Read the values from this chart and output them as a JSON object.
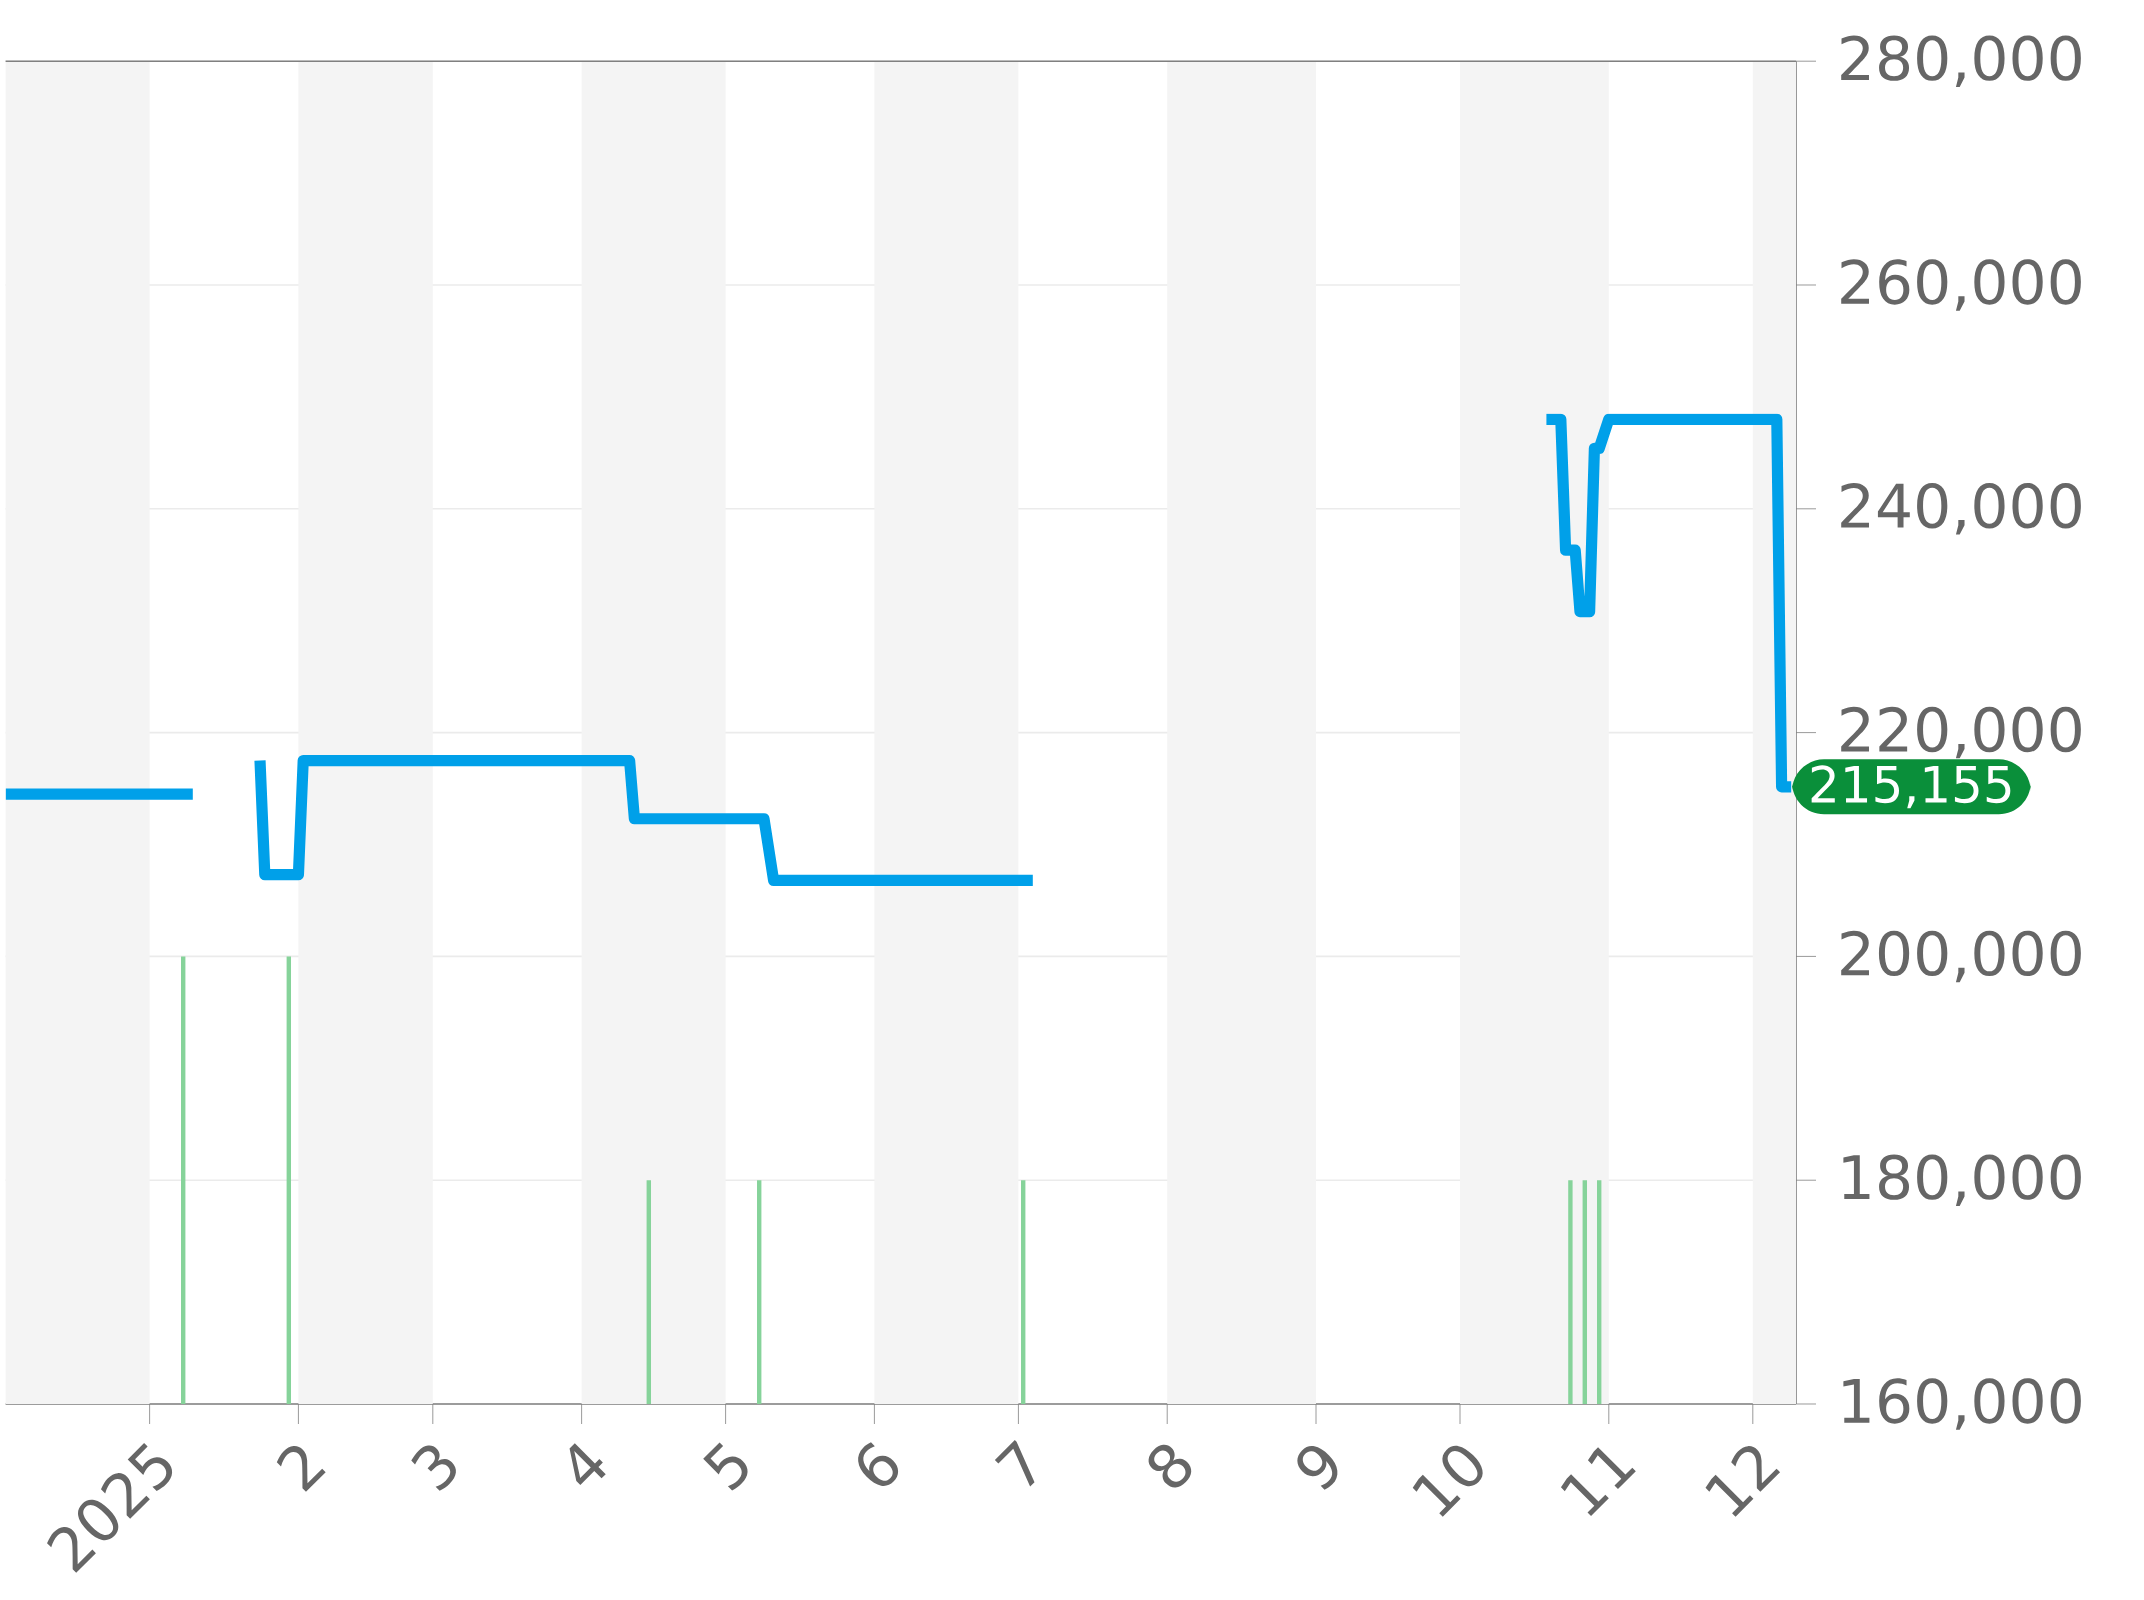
{
  "chart_data": {
    "type": "line",
    "xlim": [
      "2024-12-02",
      "2025-12-10"
    ],
    "xticks": [
      {
        "value": "2025-01-01",
        "label": "2025"
      },
      {
        "value": "2025-02-01",
        "label": "2"
      },
      {
        "value": "2025-03-01",
        "label": "3"
      },
      {
        "value": "2025-04-01",
        "label": "4"
      },
      {
        "value": "2025-05-01",
        "label": "5"
      },
      {
        "value": "2025-06-01",
        "label": "6"
      },
      {
        "value": "2025-07-01",
        "label": "7"
      },
      {
        "value": "2025-08-01",
        "label": "8"
      },
      {
        "value": "2025-09-01",
        "label": "9"
      },
      {
        "value": "2025-10-01",
        "label": "10"
      },
      {
        "value": "2025-11-01",
        "label": "11"
      },
      {
        "value": "2025-12-01",
        "label": "12"
      }
    ],
    "ylim": [
      160000,
      280000
    ],
    "yticks": [
      {
        "value": 160000,
        "label": "160,000"
      },
      {
        "value": 180000,
        "label": "180,000"
      },
      {
        "value": 200000,
        "label": "200,000"
      },
      {
        "value": 220000,
        "label": "220,000"
      },
      {
        "value": 240000,
        "label": "240,000"
      },
      {
        "value": 260000,
        "label": "260,000"
      },
      {
        "value": 280000,
        "label": "280,000"
      }
    ],
    "grid": "y",
    "bands": [
      {
        "axis": "x",
        "from": "2024-12-02",
        "to": "2025-01-01",
        "color": "#f4f4f4"
      },
      {
        "axis": "x",
        "from": "2025-02-01",
        "to": "2025-03-01",
        "color": "#f4f4f4"
      },
      {
        "axis": "x",
        "from": "2025-04-01",
        "to": "2025-05-01",
        "color": "#f4f4f4"
      },
      {
        "axis": "x",
        "from": "2025-06-01",
        "to": "2025-07-01",
        "color": "#f4f4f4"
      },
      {
        "axis": "x",
        "from": "2025-08-01",
        "to": "2025-09-01",
        "color": "#f4f4f4"
      },
      {
        "axis": "x",
        "from": "2025-10-01",
        "to": "2025-11-01",
        "color": "#f4f4f4"
      },
      {
        "axis": "x",
        "from": "2025-12-01",
        "to": "2025-12-10",
        "color": "#f4f4f4"
      }
    ],
    "series": [
      {
        "type": "bar",
        "color": "#86d39a",
        "x": [
          "2025-01-08",
          "2025-01-30",
          "2025-04-15",
          "2025-05-08",
          "2025-07-02",
          "2025-10-24",
          "2025-10-27",
          "2025-10-30"
        ],
        "values": [
          200000,
          200000,
          180000,
          180000,
          180000,
          180000,
          180000,
          180000
        ]
      },
      {
        "color": "#00a0e9",
        "x": [
          "2024-12-02",
          "2025-01-10",
          "2025-01-17",
          "2025-01-24",
          "2025-01-25",
          "2025-02-01",
          "2025-02-02",
          "2025-04-11",
          "2025-04-12",
          "2025-05-09",
          "2025-05-11",
          "2025-07-04",
          "2025-08-15",
          "2025-10-19",
          "2025-10-22",
          "2025-10-23",
          "2025-10-25",
          "2025-10-26",
          "2025-10-28",
          "2025-10-29",
          "2025-10-30",
          "2025-11-01",
          "2025-12-06",
          "2025-12-07",
          "2025-12-09"
        ],
        "values": [
          214500,
          214500,
          null,
          217500,
          207300,
          207300,
          217500,
          217500,
          212300,
          212300,
          206800,
          206800,
          null,
          248000,
          248000,
          236300,
          236300,
          230800,
          230800,
          245400,
          245400,
          248000,
          248000,
          215155,
          215155
        ]
      }
    ],
    "annotations": [
      {
        "text": "215,155",
        "x": "2025-12-09",
        "y": 215155
      }
    ]
  }
}
